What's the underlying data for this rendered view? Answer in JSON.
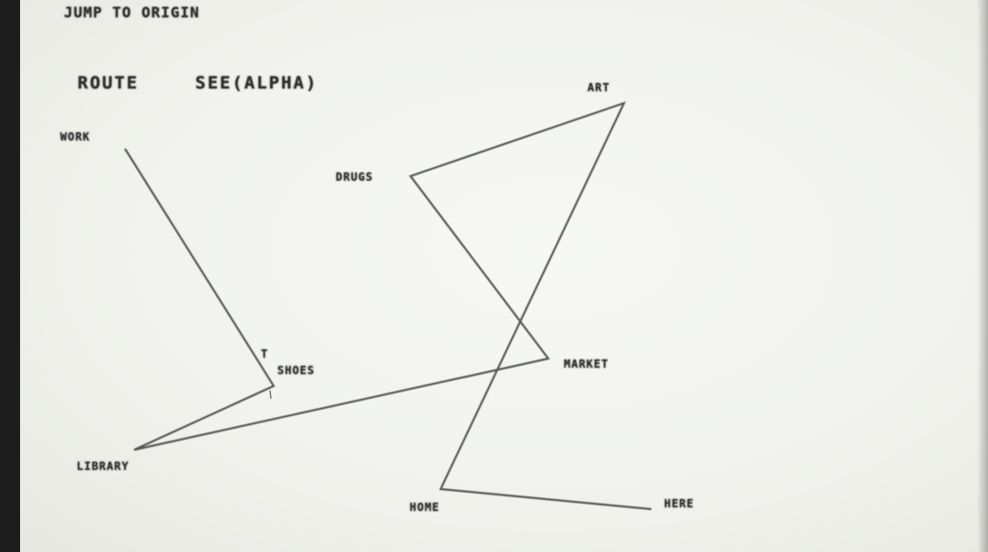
{
  "header": {
    "command": "JUMP TO ORIGIN",
    "route_title": "ROUTE",
    "route_value": "SEE(ALPHA)"
  },
  "nodes": {
    "work": "WORK",
    "drugs": "DRUGS",
    "art": "ART",
    "shoes": "SHOES",
    "cursor_mark": "T",
    "market": "MARKET",
    "library": "LIBRARY",
    "home": "HOME",
    "here": "HERE"
  },
  "route": [
    "WORK",
    "SHOES",
    "LIBRARY",
    "MARKET",
    "DRUGS",
    "ART",
    "HOME",
    "HERE"
  ],
  "colors": {
    "screen": "#f1f2ed",
    "ink": "#2c2c2c",
    "line": "#555555",
    "bezel": "#1d1d1d"
  }
}
